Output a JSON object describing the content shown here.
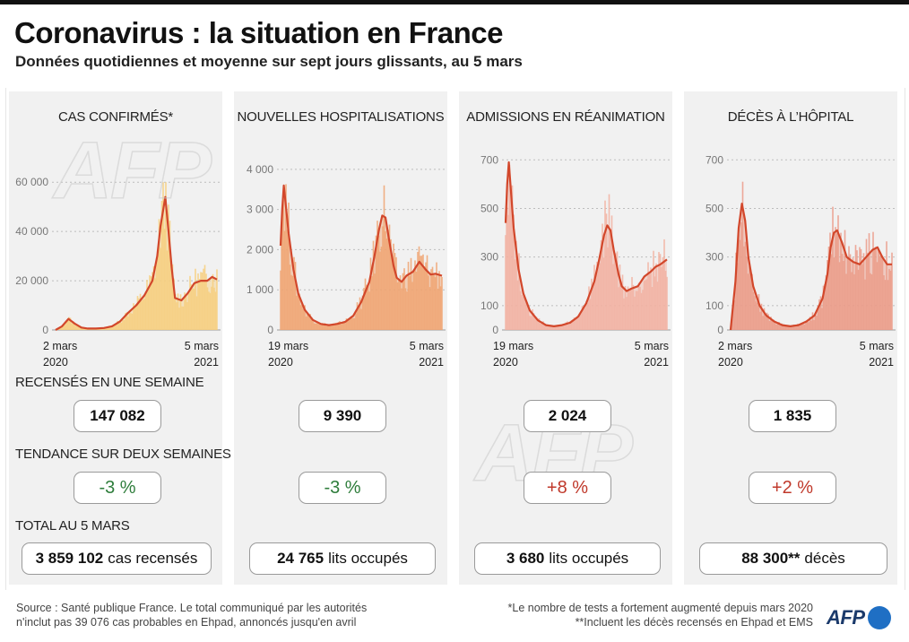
{
  "title": "Coronavirus : la situation en France",
  "subtitle": "Données quotidiennes et moyenne sur sept jours glissants, au 5 mars",
  "colors": {
    "line": "#d2472b",
    "panel_bg": "#f1f1f1",
    "trend_negative": "#2e7d3b",
    "trend_positive": "#c0392b",
    "logo_blue": "#1f6fc4"
  },
  "row_labels": {
    "weekly": "RECENSÉS EN UNE SEMAINE",
    "trend": "TENDANCE SUR DEUX SEMAINES",
    "total": "TOTAL AU 5 MARS"
  },
  "panels": [
    {
      "title": "CAS CONFIRMÉS*",
      "weekly": "147 082",
      "trend": "-3 %",
      "total_value": "3 859 102",
      "total_unit": "cas recensés",
      "date_start": [
        "2 mars",
        "2020"
      ],
      "date_end": [
        "5 mars",
        "2021"
      ],
      "tick_labels": [
        "0",
        "20 000",
        "40 000",
        "60 000"
      ]
    },
    {
      "title": "NOUVELLES HOSPITALISATIONS",
      "weekly": "9 390",
      "trend": "-3 %",
      "total_value": "24 765",
      "total_unit": "lits occupés",
      "date_start": [
        "19 mars",
        "2020"
      ],
      "date_end": [
        "5 mars",
        "2021"
      ],
      "tick_labels": [
        "0",
        "1 000",
        "2 000",
        "3 000",
        "4 000"
      ]
    },
    {
      "title": "ADMISSIONS EN RÉANIMATION",
      "weekly": "2 024",
      "trend": "+8 %",
      "total_value": "3 680",
      "total_unit": "lits occupés",
      "date_start": [
        "19 mars",
        "2020"
      ],
      "date_end": [
        "5 mars",
        "2021"
      ],
      "tick_labels": [
        "0",
        "100",
        "300",
        "500",
        "700"
      ]
    },
    {
      "title": "DÉCÈS À L’HÔPITAL",
      "weekly": "1 835",
      "trend": "+2 %",
      "total_value": "88 300**",
      "total_unit": "décès",
      "date_start": [
        "2 mars",
        "2020"
      ],
      "date_end": [
        "5 mars",
        "2021"
      ],
      "tick_labels": [
        "0",
        "100",
        "300",
        "500",
        "700"
      ]
    }
  ],
  "chart_data": [
    {
      "type": "area",
      "title": "CAS CONFIRMÉS*",
      "ylim": [
        0,
        75000
      ],
      "yticks": [
        0,
        20000,
        40000,
        60000
      ],
      "x_range": [
        "2020-03-02",
        "2021-03-05"
      ],
      "series": [
        {
          "name": "moyenne sur sept jours",
          "x": [
            0,
            4,
            8,
            12,
            16,
            20,
            25,
            30,
            35,
            40,
            45,
            50,
            55,
            60,
            63,
            65,
            67,
            68,
            70,
            72,
            74,
            78,
            82,
            86,
            90,
            94,
            97,
            100
          ],
          "y": [
            0,
            1500,
            4500,
            2500,
            1000,
            600,
            600,
            800,
            1500,
            3500,
            7000,
            10000,
            14000,
            20000,
            30000,
            42000,
            50000,
            54000,
            40000,
            25000,
            13000,
            12000,
            15000,
            19000,
            20000,
            20000,
            21500,
            20500
          ]
        }
      ],
      "peak_daily": 60000
    },
    {
      "type": "area",
      "title": "NOUVELLES HOSPITALISATIONS",
      "ylim": [
        0,
        4600
      ],
      "yticks": [
        0,
        1000,
        2000,
        3000,
        4000
      ],
      "x_range": [
        "2020-03-19",
        "2021-03-05"
      ],
      "series": [
        {
          "name": "moyenne sur sept jours",
          "x": [
            0,
            1,
            2,
            3,
            5,
            8,
            11,
            15,
            20,
            25,
            30,
            35,
            40,
            45,
            50,
            55,
            58,
            61,
            63,
            65,
            67,
            70,
            72,
            75,
            78,
            82,
            86,
            90,
            93,
            96,
            100
          ],
          "y": [
            2100,
            3000,
            3600,
            3200,
            2400,
            1500,
            900,
            500,
            250,
            150,
            120,
            150,
            200,
            350,
            700,
            1200,
            1800,
            2500,
            2850,
            2800,
            2300,
            1600,
            1300,
            1200,
            1350,
            1450,
            1700,
            1500,
            1380,
            1400,
            1350
          ]
        }
      ],
      "peak_daily": 4300
    },
    {
      "type": "area",
      "title": "ADMISSIONS EN RÉANIMATION",
      "ylim": [
        0,
        760
      ],
      "yticks": [
        0,
        100,
        300,
        500,
        700
      ],
      "x_range": [
        "2020-03-19",
        "2021-03-05"
      ],
      "series": [
        {
          "name": "moyenne sur sept jours",
          "x": [
            0,
            1,
            2,
            3,
            5,
            8,
            11,
            15,
            20,
            25,
            30,
            35,
            40,
            45,
            50,
            55,
            58,
            61,
            63,
            65,
            67,
            70,
            72,
            75,
            78,
            82,
            86,
            90,
            93,
            96,
            100
          ],
          "y": [
            440,
            600,
            690,
            600,
            420,
            250,
            150,
            80,
            40,
            20,
            15,
            20,
            30,
            55,
            110,
            200,
            290,
            390,
            430,
            410,
            330,
            230,
            180,
            160,
            170,
            180,
            220,
            240,
            260,
            270,
            290
          ]
        }
      ],
      "peak_daily": 770
    },
    {
      "type": "area",
      "title": "DÉCÈS À L’HÔPITAL",
      "ylim": [
        0,
        760
      ],
      "yticks": [
        0,
        100,
        300,
        500,
        700
      ],
      "x_range": [
        "2020-03-02",
        "2021-03-05"
      ],
      "series": [
        {
          "name": "moyenne sur sept jours",
          "x": [
            0,
            3,
            5,
            7,
            9,
            11,
            14,
            18,
            22,
            27,
            32,
            37,
            42,
            47,
            52,
            57,
            60,
            62,
            64,
            66,
            69,
            72,
            76,
            80,
            84,
            88,
            91,
            94,
            97,
            100
          ],
          "y": [
            0,
            200,
            420,
            520,
            450,
            300,
            180,
            100,
            60,
            35,
            20,
            15,
            20,
            35,
            60,
            130,
            230,
            340,
            400,
            410,
            360,
            300,
            280,
            270,
            300,
            330,
            340,
            300,
            270,
            270
          ]
        }
      ],
      "peak_daily": 610
    }
  ],
  "footer": {
    "source_line1": "Source : Santé publique France. Le total communiqué par les autorités",
    "source_line2": "n'inclut pas 39 076 cas probables en Ehpad, annoncés jusqu'en avril",
    "note1": "*Le nombre de tests a fortement augmenté depuis mars 2020",
    "note2": "**Incluent les décès recensés en Ehpad et EMS",
    "logo_text": "AFP"
  }
}
